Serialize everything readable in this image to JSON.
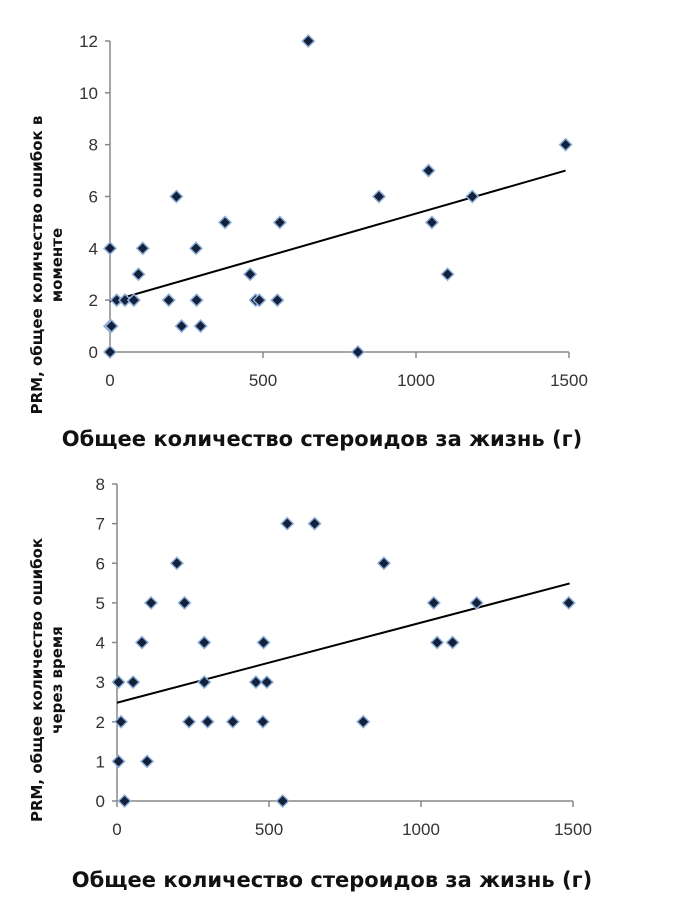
{
  "chart_data": [
    {
      "type": "scatter",
      "xlabel": "Общее количество стероидов за жизнь (г)",
      "ylabel_lines": [
        "PRM, общее количество ошибок в",
        "моменте"
      ],
      "xlim": [
        0,
        1500
      ],
      "ylim": [
        0,
        12
      ],
      "xticks": [
        0,
        500,
        1000,
        1500
      ],
      "yticks": [
        0,
        2,
        4,
        6,
        8,
        10,
        12
      ],
      "grid": false,
      "marker_color": "#14213d",
      "marker_edge": "#8fb0d8",
      "points": [
        [
          0,
          0
        ],
        [
          0,
          1
        ],
        [
          5,
          1
        ],
        [
          0,
          4
        ],
        [
          22,
          2
        ],
        [
          49,
          2
        ],
        [
          78,
          2
        ],
        [
          93,
          3
        ],
        [
          107,
          4
        ],
        [
          192,
          2
        ],
        [
          217,
          6
        ],
        [
          234,
          1
        ],
        [
          281,
          4
        ],
        [
          283,
          2
        ],
        [
          296,
          1
        ],
        [
          376,
          5
        ],
        [
          458,
          3
        ],
        [
          476,
          2
        ],
        [
          488,
          2
        ],
        [
          547,
          2
        ],
        [
          555,
          5
        ],
        [
          648,
          12
        ],
        [
          810,
          0
        ],
        [
          879,
          6
        ],
        [
          1041,
          7
        ],
        [
          1052,
          5
        ],
        [
          1103,
          3
        ],
        [
          1184,
          6
        ],
        [
          1489,
          8
        ]
      ],
      "trendline": [
        [
          0,
          1.95
        ],
        [
          1489,
          7.0
        ]
      ]
    },
    {
      "type": "scatter",
      "xlabel": "Общее количество стероидов за жизнь (г)",
      "ylabel_lines": [
        "PRM, общее количество ошибок",
        "через время"
      ],
      "xlim": [
        0,
        1500
      ],
      "ylim": [
        0,
        8
      ],
      "xticks": [
        0,
        500,
        1000,
        1500
      ],
      "yticks": [
        0,
        1,
        2,
        3,
        4,
        5,
        6,
        7,
        8
      ],
      "grid": false,
      "marker_color": "#14213d",
      "marker_edge": "#8fb0d8",
      "points": [
        [
          5,
          3
        ],
        [
          5,
          1
        ],
        [
          13,
          2
        ],
        [
          25,
          0
        ],
        [
          53,
          3
        ],
        [
          82,
          4
        ],
        [
          99,
          1
        ],
        [
          112,
          5
        ],
        [
          197,
          6
        ],
        [
          222,
          5
        ],
        [
          237,
          2
        ],
        [
          287,
          4
        ],
        [
          287,
          3
        ],
        [
          298,
          2
        ],
        [
          381,
          2
        ],
        [
          457,
          3
        ],
        [
          482,
          4
        ],
        [
          480,
          2
        ],
        [
          493,
          3
        ],
        [
          545,
          0
        ],
        [
          560,
          7
        ],
        [
          650,
          7
        ],
        [
          810,
          2
        ],
        [
          878,
          6
        ],
        [
          1042,
          5
        ],
        [
          1053,
          4
        ],
        [
          1104,
          4
        ],
        [
          1183,
          5
        ],
        [
          1486,
          5
        ]
      ],
      "trendline": [
        [
          0,
          2.48
        ],
        [
          1489,
          5.49
        ]
      ]
    }
  ]
}
